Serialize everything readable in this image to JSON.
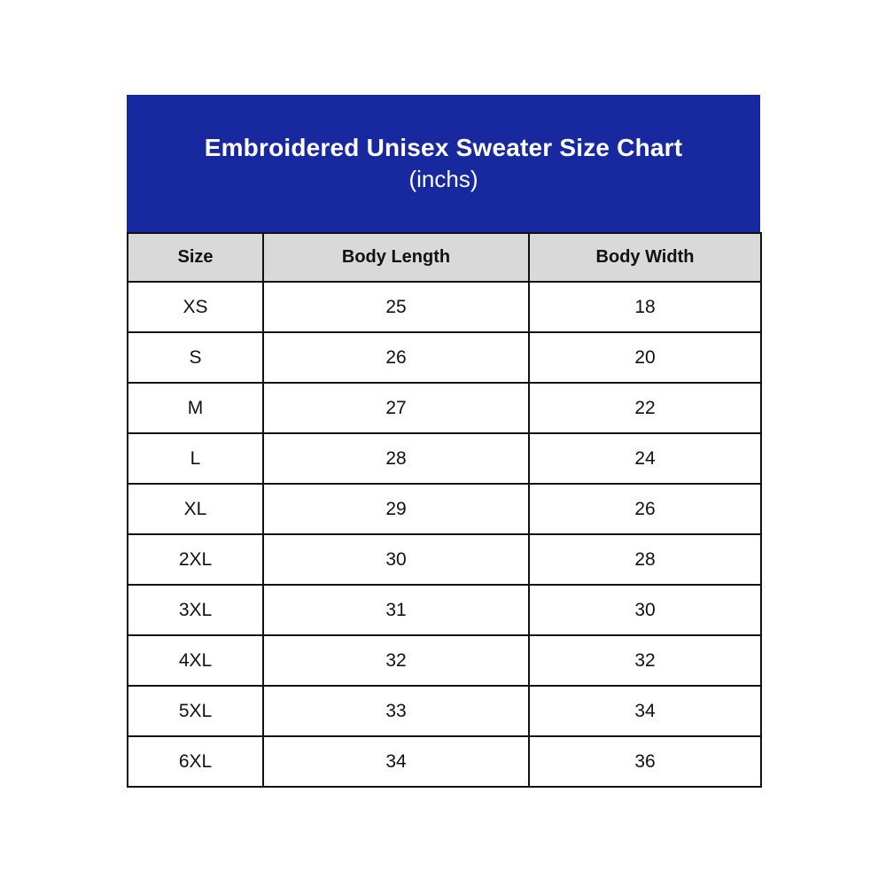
{
  "title": {
    "line1": "Embroidered Unisex Sweater Size Chart",
    "line2": "(inchs)"
  },
  "colors": {
    "title_bg": "#1829a0",
    "title_text": "#ffffff",
    "header_bg": "#d9d9d9",
    "border": "#111111",
    "page_bg": "#ffffff"
  },
  "chart_data": {
    "type": "table",
    "title": "Embroidered Unisex Sweater Size Chart (inchs)",
    "unit": "inchs",
    "headers": [
      "Size",
      "Body Length",
      "Body Width"
    ],
    "rows": [
      [
        "XS",
        "25",
        "18"
      ],
      [
        "S",
        "26",
        "20"
      ],
      [
        "M",
        "27",
        "22"
      ],
      [
        "L",
        "28",
        "24"
      ],
      [
        "XL",
        "29",
        "26"
      ],
      [
        "2XL",
        "30",
        "28"
      ],
      [
        "3XL",
        "31",
        "30"
      ],
      [
        "4XL",
        "32",
        "32"
      ],
      [
        "5XL",
        "33",
        "34"
      ],
      [
        "6XL",
        "34",
        "36"
      ]
    ]
  }
}
